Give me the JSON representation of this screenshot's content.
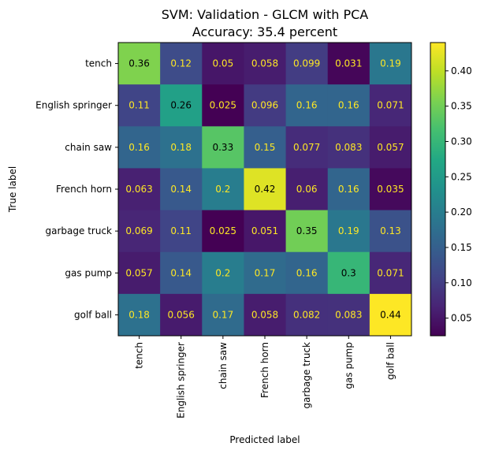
{
  "chart_data": {
    "type": "heatmap",
    "title_line1": "SVM: Validation - GLCM with PCA",
    "title_line2": "Accuracy: 35.4 percent",
    "xlabel": "Predicted label",
    "ylabel": "True label",
    "row_labels": [
      "tench",
      "English springer",
      "chain saw",
      "French horn",
      "garbage truck",
      "gas pump",
      "golf ball"
    ],
    "col_labels": [
      "tench",
      "English springer",
      "chain saw",
      "French horn",
      "garbage truck",
      "gas pump",
      "golf ball"
    ],
    "values": [
      [
        0.36,
        0.12,
        0.05,
        0.058,
        0.099,
        0.031,
        0.19
      ],
      [
        0.11,
        0.26,
        0.025,
        0.096,
        0.16,
        0.16,
        0.071
      ],
      [
        0.16,
        0.18,
        0.33,
        0.15,
        0.077,
        0.083,
        0.057
      ],
      [
        0.063,
        0.14,
        0.2,
        0.42,
        0.06,
        0.16,
        0.035
      ],
      [
        0.069,
        0.11,
        0.025,
        0.051,
        0.35,
        0.19,
        0.13
      ],
      [
        0.057,
        0.14,
        0.2,
        0.17,
        0.16,
        0.3,
        0.071
      ],
      [
        0.18,
        0.056,
        0.17,
        0.058,
        0.082,
        0.083,
        0.44
      ]
    ],
    "display_labels": [
      [
        "0.36",
        "0.12",
        "0.05",
        "0.058",
        "0.099",
        "0.031",
        "0.19"
      ],
      [
        "0.11",
        "0.26",
        "0.025",
        "0.096",
        "0.16",
        "0.16",
        "0.071"
      ],
      [
        "0.16",
        "0.18",
        "0.33",
        "0.15",
        "0.077",
        "0.083",
        "0.057"
      ],
      [
        "0.063",
        "0.14",
        "0.2",
        "0.42",
        "0.06",
        "0.16",
        "0.035"
      ],
      [
        "0.069",
        "0.11",
        "0.025",
        "0.051",
        "0.35",
        "0.19",
        "0.13"
      ],
      [
        "0.057",
        "0.14",
        "0.2",
        "0.17",
        "0.16",
        "0.3",
        "0.071"
      ],
      [
        "0.18",
        "0.056",
        "0.17",
        "0.058",
        "0.082",
        "0.083",
        "0.44"
      ]
    ],
    "colormap": "viridis",
    "colorbar": {
      "vmin": 0.025,
      "vmax": 0.44,
      "ticks": [
        0.05,
        0.1,
        0.15,
        0.2,
        0.25,
        0.3,
        0.35,
        0.4
      ],
      "tick_labels": [
        "0.05",
        "0.10",
        "0.15",
        "0.20",
        "0.25",
        "0.30",
        "0.35",
        "0.40"
      ]
    },
    "text_color_light": "#fde725",
    "text_color_dark": "#000000",
    "grid": false
  }
}
